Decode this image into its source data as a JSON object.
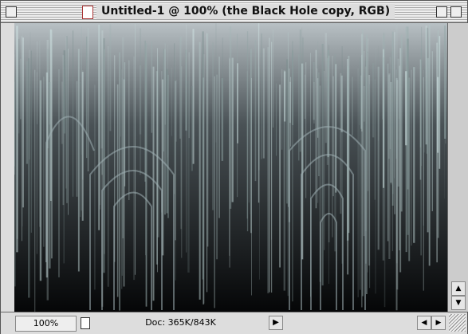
{
  "window": {
    "title": "Untitled-1 @ 100% (the Black Hole copy, RGB)",
    "zoom": "100%",
    "doc_size": "Doc: 365K/843K"
  }
}
